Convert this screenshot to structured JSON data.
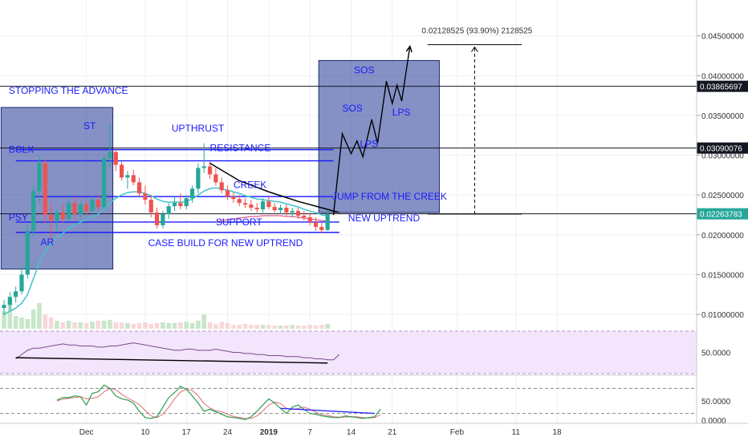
{
  "chart_data": {
    "type": "candlestick",
    "title": "",
    "price_axis": {
      "ticks": [
        "0.04500000",
        "0.04000000",
        "0.03500000",
        "0.03000000",
        "0.02500000",
        "0.02000000",
        "0.01500000",
        "0.01000000"
      ],
      "tick_values": [
        0.045,
        0.04,
        0.035,
        0.03,
        0.025,
        0.02,
        0.015,
        0.01
      ],
      "range": [
        0.0082,
        0.0495
      ],
      "grid": true
    },
    "price_labels": [
      {
        "text": "0.03865697",
        "value": 0.03865697,
        "color": "#131722"
      },
      {
        "text": "0.03090076",
        "value": 0.03090076,
        "color": "#131722"
      },
      {
        "text": "0.02263783",
        "value": 0.02263783,
        "color": "#26a69a"
      }
    ],
    "x_axis": {
      "ticks": [
        {
          "label": "Dec",
          "bar": 14
        },
        {
          "label": "10",
          "bar": 24
        },
        {
          "label": "17",
          "bar": 31
        },
        {
          "label": "24",
          "bar": 38
        },
        {
          "label": "2019",
          "bar": 45
        },
        {
          "label": "7",
          "bar": 52
        },
        {
          "label": "14",
          "bar": 59
        },
        {
          "label": "21",
          "bar": 66
        },
        {
          "label": "Feb",
          "bar": 77
        },
        {
          "label": "11",
          "bar": 87
        },
        {
          "label": "18",
          "bar": 94
        }
      ]
    },
    "candles": [
      {
        "o": 0.0108,
        "h": 0.0118,
        "l": 0.0099,
        "c": 0.0112
      },
      {
        "o": 0.0112,
        "h": 0.0128,
        "l": 0.0105,
        "c": 0.0122
      },
      {
        "o": 0.0122,
        "h": 0.0135,
        "l": 0.0115,
        "c": 0.0129
      },
      {
        "o": 0.0129,
        "h": 0.016,
        "l": 0.0125,
        "c": 0.015
      },
      {
        "o": 0.015,
        "h": 0.0212,
        "l": 0.0145,
        "c": 0.0205
      },
      {
        "o": 0.0205,
        "h": 0.0262,
        "l": 0.0198,
        "c": 0.0255
      },
      {
        "o": 0.0255,
        "h": 0.03,
        "l": 0.024,
        "c": 0.029
      },
      {
        "o": 0.029,
        "h": 0.0295,
        "l": 0.0215,
        "c": 0.0225
      },
      {
        "o": 0.0225,
        "h": 0.024,
        "l": 0.0192,
        "c": 0.0218
      },
      {
        "o": 0.0218,
        "h": 0.0232,
        "l": 0.0205,
        "c": 0.0228
      },
      {
        "o": 0.0228,
        "h": 0.0238,
        "l": 0.0215,
        "c": 0.022
      },
      {
        "o": 0.022,
        "h": 0.0245,
        "l": 0.0218,
        "c": 0.024
      },
      {
        "o": 0.024,
        "h": 0.0248,
        "l": 0.022,
        "c": 0.0226
      },
      {
        "o": 0.0226,
        "h": 0.0242,
        "l": 0.0222,
        "c": 0.0238
      },
      {
        "o": 0.0238,
        "h": 0.0244,
        "l": 0.0225,
        "c": 0.023
      },
      {
        "o": 0.023,
        "h": 0.0248,
        "l": 0.0226,
        "c": 0.0244
      },
      {
        "o": 0.0244,
        "h": 0.025,
        "l": 0.023,
        "c": 0.0235
      },
      {
        "o": 0.0235,
        "h": 0.03,
        "l": 0.0232,
        "c": 0.0296
      },
      {
        "o": 0.0296,
        "h": 0.0338,
        "l": 0.0285,
        "c": 0.0304
      },
      {
        "o": 0.0304,
        "h": 0.031,
        "l": 0.028,
        "c": 0.0288
      },
      {
        "o": 0.0288,
        "h": 0.0292,
        "l": 0.0268,
        "c": 0.0272
      },
      {
        "o": 0.0272,
        "h": 0.028,
        "l": 0.0258,
        "c": 0.0275
      },
      {
        "o": 0.0275,
        "h": 0.0282,
        "l": 0.0262,
        "c": 0.0266
      },
      {
        "o": 0.0266,
        "h": 0.0272,
        "l": 0.0248,
        "c": 0.0252
      },
      {
        "o": 0.0252,
        "h": 0.0262,
        "l": 0.0238,
        "c": 0.0244
      },
      {
        "o": 0.0244,
        "h": 0.025,
        "l": 0.0222,
        "c": 0.0228
      },
      {
        "o": 0.0228,
        "h": 0.0234,
        "l": 0.0208,
        "c": 0.0212
      },
      {
        "o": 0.0212,
        "h": 0.023,
        "l": 0.0208,
        "c": 0.0226
      },
      {
        "o": 0.0226,
        "h": 0.024,
        "l": 0.022,
        "c": 0.0236
      },
      {
        "o": 0.0236,
        "h": 0.0248,
        "l": 0.023,
        "c": 0.024
      },
      {
        "o": 0.024,
        "h": 0.0252,
        "l": 0.0232,
        "c": 0.0236
      },
      {
        "o": 0.0236,
        "h": 0.025,
        "l": 0.0232,
        "c": 0.0246
      },
      {
        "o": 0.0246,
        "h": 0.0262,
        "l": 0.024,
        "c": 0.0258
      },
      {
        "o": 0.0258,
        "h": 0.029,
        "l": 0.0252,
        "c": 0.0284
      },
      {
        "o": 0.0284,
        "h": 0.0315,
        "l": 0.0278,
        "c": 0.0286
      },
      {
        "o": 0.0286,
        "h": 0.0292,
        "l": 0.027,
        "c": 0.0276
      },
      {
        "o": 0.0276,
        "h": 0.0284,
        "l": 0.0262,
        "c": 0.0266
      },
      {
        "o": 0.0266,
        "h": 0.0272,
        "l": 0.0252,
        "c": 0.0256
      },
      {
        "o": 0.0256,
        "h": 0.0262,
        "l": 0.0244,
        "c": 0.0248
      },
      {
        "o": 0.0248,
        "h": 0.0254,
        "l": 0.024,
        "c": 0.0245
      },
      {
        "o": 0.0245,
        "h": 0.025,
        "l": 0.0236,
        "c": 0.024
      },
      {
        "o": 0.024,
        "h": 0.0246,
        "l": 0.0234,
        "c": 0.0238
      },
      {
        "o": 0.0238,
        "h": 0.0244,
        "l": 0.023,
        "c": 0.0234
      },
      {
        "o": 0.0234,
        "h": 0.024,
        "l": 0.0228,
        "c": 0.0232
      },
      {
        "o": 0.0232,
        "h": 0.0246,
        "l": 0.0228,
        "c": 0.0242
      },
      {
        "o": 0.0242,
        "h": 0.0248,
        "l": 0.0232,
        "c": 0.0235
      },
      {
        "o": 0.0235,
        "h": 0.024,
        "l": 0.0228,
        "c": 0.0231
      },
      {
        "o": 0.0231,
        "h": 0.0238,
        "l": 0.0226,
        "c": 0.0234
      },
      {
        "o": 0.0234,
        "h": 0.0238,
        "l": 0.0224,
        "c": 0.0228
      },
      {
        "o": 0.0228,
        "h": 0.0234,
        "l": 0.0222,
        "c": 0.023
      },
      {
        "o": 0.023,
        "h": 0.0234,
        "l": 0.022,
        "c": 0.0224
      },
      {
        "o": 0.0224,
        "h": 0.023,
        "l": 0.0218,
        "c": 0.0222
      },
      {
        "o": 0.0222,
        "h": 0.0228,
        "l": 0.0212,
        "c": 0.0216
      },
      {
        "o": 0.0216,
        "h": 0.0222,
        "l": 0.0205,
        "c": 0.021
      },
      {
        "o": 0.021,
        "h": 0.0215,
        "l": 0.0202,
        "c": 0.0206
      },
      {
        "o": 0.0206,
        "h": 0.0232,
        "l": 0.0205,
        "c": 0.0226
      }
    ],
    "ma_line": {
      "color": "#3fc3d0",
      "values": [
        0.01,
        0.0104,
        0.0108,
        0.0114,
        0.0125,
        0.0145,
        0.0165,
        0.018,
        0.019,
        0.0197,
        0.0202,
        0.0208,
        0.0212,
        0.0216,
        0.0219,
        0.0223,
        0.0226,
        0.0232,
        0.024,
        0.0246,
        0.025,
        0.0253,
        0.0254,
        0.0254,
        0.0252,
        0.0249,
        0.0245,
        0.0242,
        0.0241,
        0.0241,
        0.0241,
        0.0242,
        0.0245,
        0.025,
        0.0255,
        0.0258,
        0.0259,
        0.0258,
        0.0256,
        0.0254,
        0.0252,
        0.0249,
        0.0247,
        0.0245,
        0.0244,
        0.0243,
        0.0242,
        0.0241,
        0.0239,
        0.0237,
        0.0235,
        0.0232,
        0.023,
        0.0228,
        0.0225,
        0.0224
      ]
    },
    "ma2_line": {
      "color": "#e05a8a",
      "from": 36,
      "values": [
        0.0216,
        0.0218,
        0.0219,
        0.022,
        0.0221,
        0.0222,
        0.0223,
        0.0223,
        0.0224,
        0.0224,
        0.0224,
        0.0224,
        0.0223,
        0.0223,
        0.0222,
        0.0221,
        0.022,
        0.0219,
        0.0218,
        0.0217
      ]
    },
    "horizontal_lines": [
      {
        "value": 0.03865697,
        "color": "#131722"
      },
      {
        "value": 0.03090076,
        "color": "#131722"
      },
      {
        "value": 0.02263783,
        "color": "#131722"
      }
    ],
    "channels": [
      {
        "name": "resistance",
        "from_bar": 2,
        "to_bar": 56,
        "value": 0.0307,
        "value2": 0.0293
      },
      {
        "name": "creek",
        "from_bar": 5,
        "to_bar": 56,
        "value": 0.0248
      },
      {
        "name": "support",
        "from_bar": 2,
        "to_bar": 57,
        "value": 0.0216,
        "value2": 0.0203
      }
    ],
    "boxes": [
      {
        "from_bar": -0.5,
        "to_bar": 18.5,
        "top": 0.036,
        "bottom": 0.0157
      },
      {
        "from_bar": 53.5,
        "to_bar": 74,
        "top": 0.0419,
        "bottom": 0.0228
      }
    ],
    "projection_path": [
      [
        56,
        0.0225
      ],
      [
        57.5,
        0.0327
      ],
      [
        59,
        0.0302
      ],
      [
        60,
        0.0318
      ],
      [
        61,
        0.0298
      ],
      [
        62.5,
        0.0345
      ],
      [
        63.5,
        0.0315
      ],
      [
        65,
        0.0393
      ],
      [
        66,
        0.0365
      ],
      [
        66.8,
        0.0388
      ],
      [
        67.6,
        0.0368
      ],
      [
        69,
        0.0437
      ]
    ],
    "measure": {
      "label": "0.02128525 (93.90%) 2128525",
      "bar": 80,
      "from": 0.0226,
      "to": 0.0439
    },
    "annotations": [
      {
        "text": "STOPPING THE ADVANCE",
        "bar": 0.8,
        "value": 0.0377
      },
      {
        "text": "ST",
        "bar": 13.5,
        "value": 0.0333
      },
      {
        "text": "BCLX",
        "bar": 0.8,
        "value": 0.0303
      },
      {
        "text": "PSY",
        "bar": 0.8,
        "value": 0.0218
      },
      {
        "text": "AR",
        "bar": 6.2,
        "value": 0.0187
      },
      {
        "text": "UPTHRUST",
        "bar": 28.5,
        "value": 0.033
      },
      {
        "text": "RESISTANCE",
        "bar": 35.0,
        "value": 0.0305
      },
      {
        "text": "CREEK",
        "bar": 39.0,
        "value": 0.0259
      },
      {
        "text": "SUPPORT",
        "bar": 36.0,
        "value": 0.0212
      },
      {
        "text": "CASE BUILD FOR NEW UPTREND",
        "bar": 24.5,
        "value": 0.0186
      },
      {
        "text": "SOS",
        "bar": 59.5,
        "value": 0.0403
      },
      {
        "text": "SOS",
        "bar": 57.5,
        "value": 0.0355
      },
      {
        "text": "LPS",
        "bar": 60.5,
        "value": 0.031
      },
      {
        "text": "LPS",
        "bar": 66.0,
        "value": 0.035
      },
      {
        "text": "JUMP FROM THE CREEK",
        "bar": 55.8,
        "value": 0.0244
      },
      {
        "text": "NEW UPTREND",
        "bar": 58.5,
        "value": 0.0217
      }
    ],
    "volume": [
      0.55,
      0.8,
      0.4,
      0.35,
      0.3,
      0.6,
      0.8,
      0.45,
      0.35,
      0.25,
      0.2,
      0.25,
      0.2,
      0.2,
      0.18,
      0.22,
      0.25,
      0.25,
      0.28,
      0.2,
      0.2,
      0.18,
      0.15,
      0.18,
      0.2,
      0.15,
      0.18,
      0.2,
      0.18,
      0.18,
      0.2,
      0.22,
      0.18,
      0.25,
      0.45,
      0.2,
      0.15,
      0.22,
      0.18,
      0.12,
      0.12,
      0.15,
      0.12,
      0.12,
      0.12,
      0.12,
      0.1,
      0.1,
      0.1,
      0.12,
      0.1,
      0.1,
      0.12,
      0.1,
      0.12,
      0.15
    ],
    "rsi": {
      "ticks": [
        "50.0000"
      ],
      "values": [
        44,
        48,
        52,
        54,
        54,
        55,
        56,
        57,
        58,
        57,
        57,
        56,
        56,
        56,
        55,
        55,
        56,
        56,
        57,
        58,
        59,
        58,
        57,
        56,
        55,
        54,
        53,
        52,
        52,
        53,
        53,
        52,
        52,
        52,
        53,
        52,
        51,
        50,
        50,
        49,
        49,
        48,
        48,
        47,
        47,
        47,
        46,
        46,
        46,
        45,
        45,
        44,
        44,
        43,
        43,
        48
      ]
    },
    "stoch": {
      "ticks": [
        "50.0000",
        "0.0000"
      ],
      "k": [
        52,
        58,
        58,
        62,
        60,
        40,
        68,
        72,
        88,
        80,
        62,
        55,
        52,
        45,
        25,
        10,
        8,
        12,
        35,
        58,
        70,
        85,
        78,
        62,
        45,
        25,
        30,
        24,
        18,
        12,
        10,
        8,
        5,
        12,
        25,
        40,
        55,
        45,
        32,
        20,
        35,
        40,
        30,
        20,
        18,
        14,
        12,
        10,
        10,
        14,
        12,
        10,
        8,
        10,
        12,
        30
      ],
      "d": [
        50,
        54,
        56,
        58,
        60,
        55,
        56,
        60,
        72,
        80,
        77,
        66,
        57,
        50,
        41,
        27,
        14,
        10,
        18,
        35,
        55,
        71,
        78,
        75,
        62,
        44,
        33,
        26,
        24,
        18,
        13,
        10,
        8,
        8,
        14,
        26,
        40,
        47,
        44,
        32,
        29,
        32,
        35,
        30,
        23,
        17,
        15,
        12,
        11,
        11,
        12,
        12,
        10,
        9,
        10,
        17
      ]
    }
  }
}
